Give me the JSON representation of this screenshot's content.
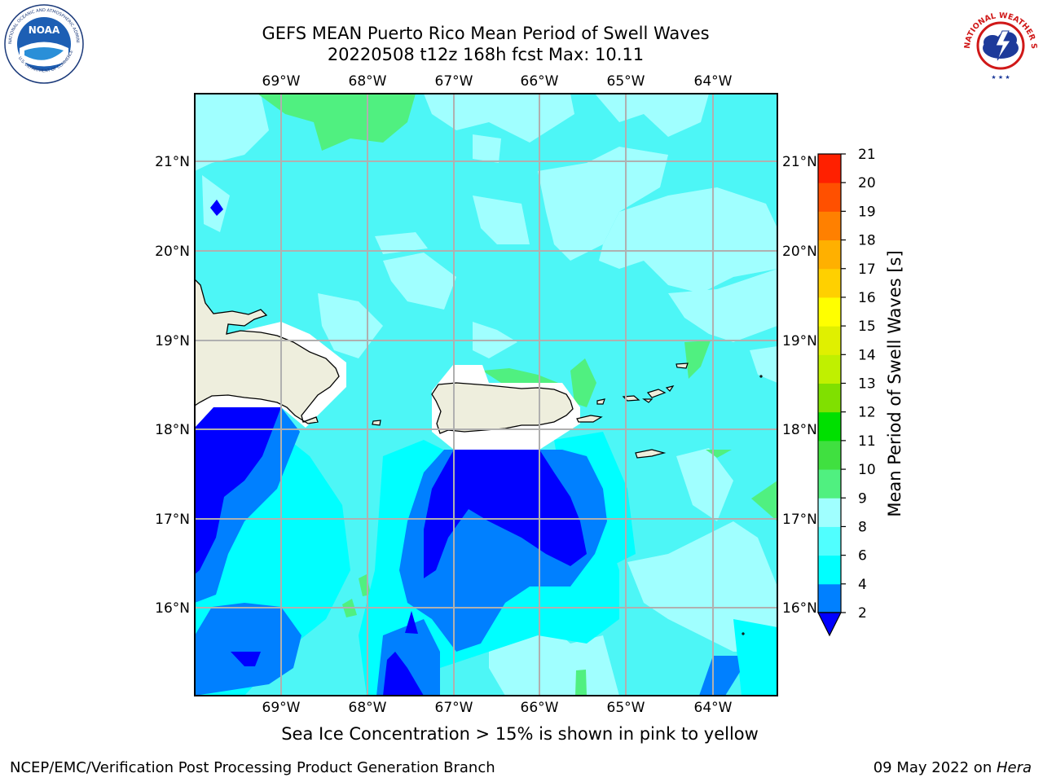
{
  "title": {
    "line1": "GEFS MEAN Puerto Rico Mean Period of Swell Waves",
    "line2": "20220508 t12z 168h fcst   Max: 10.11"
  },
  "map": {
    "lon_labels": [
      "69°W",
      "68°W",
      "67°W",
      "66°W",
      "65°W",
      "64°W"
    ],
    "lat_labels": [
      "21°N",
      "20°N",
      "19°N",
      "18°N",
      "17°N",
      "16°N"
    ],
    "colors": {
      "ocean_fill": "#4df6f6",
      "land": "#eeeedd",
      "masked": "#ffffff",
      "gridline": "#b0b0b0"
    }
  },
  "colorbar": {
    "label": "Mean Period of Swell Waves [s]",
    "ticks": [
      "2",
      "4",
      "6",
      "8",
      "9",
      "10",
      "11",
      "12",
      "13",
      "14",
      "15",
      "16",
      "17",
      "18",
      "19",
      "20",
      "21"
    ],
    "colors": [
      "#0000ff",
      "#0080ff",
      "#00ffff",
      "#50ffff",
      "#a0ffff",
      "#50f080",
      "#40e040",
      "#00e000",
      "#80e000",
      "#c0f000",
      "#e0f000",
      "#ffff00",
      "#ffd000",
      "#ffb000",
      "#ff8000",
      "#ff5000",
      "#ff2000",
      "#ff0000"
    ]
  },
  "note": "Sea Ice Concentration > 15% is shown in pink to yellow",
  "footer": {
    "left": "NCEP/EMC/Verification Post Processing Product Generation Branch",
    "right_date": "09 May 2022 on ",
    "right_machine": "Hera"
  },
  "logos": {
    "noaa_text": "NOAA",
    "noaa_ring": "NATIONAL OCEANIC AND ATMOSPHERIC ADMINISTRATION",
    "noaa_ring_bottom": "U.S. DEPARTMENT OF COMMERCE",
    "nws_ring": "NATIONAL WEATHER SERVICE"
  }
}
